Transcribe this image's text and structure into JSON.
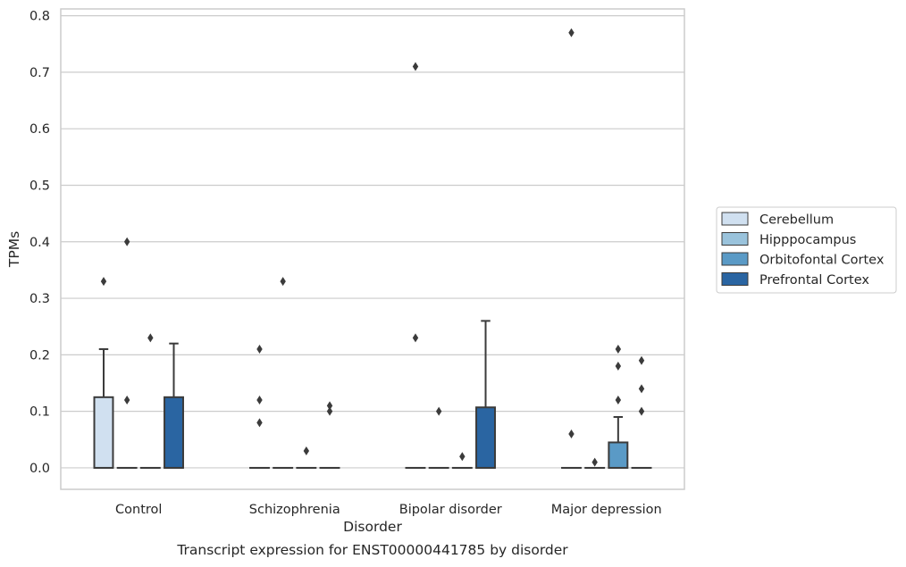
{
  "caption": "Transcript expression for ENST00000441785 by disorder",
  "chart_data": {
    "type": "boxplot",
    "xlabel": "Disorder",
    "ylabel": "TPMs",
    "ylim": [
      -0.038,
      0.812
    ],
    "yticks": [
      "0.0",
      "0.1",
      "0.2",
      "0.3",
      "0.4",
      "0.5",
      "0.6",
      "0.7",
      "0.8"
    ],
    "grid": "horizontal",
    "legend_position": "right",
    "categories": [
      "Control",
      "Schizophrenia",
      "Bipolar disorder",
      "Major depression"
    ],
    "series": [
      {
        "name": "Cerebellum",
        "color": "#d0e0f0",
        "boxes": [
          {
            "q1": 0,
            "median": 0,
            "q3": 0.125,
            "whisker_low": 0,
            "whisker_high": 0.21,
            "outliers": [
              0.33
            ]
          },
          {
            "q1": 0,
            "median": 0,
            "q3": 0,
            "whisker_low": 0,
            "whisker_high": 0,
            "outliers": [
              0.08,
              0.12,
              0.21
            ]
          },
          {
            "q1": 0,
            "median": 0,
            "q3": 0,
            "whisker_low": 0,
            "whisker_high": 0,
            "outliers": [
              0.23,
              0.71
            ]
          },
          {
            "q1": 0,
            "median": 0,
            "q3": 0,
            "whisker_low": 0,
            "whisker_high": 0,
            "outliers": [
              0.06,
              0.77
            ]
          }
        ]
      },
      {
        "name": "Hipppocampus",
        "color": "#9ac3dc",
        "boxes": [
          {
            "q1": 0,
            "median": 0,
            "q3": 0,
            "whisker_low": 0,
            "whisker_high": 0,
            "outliers": [
              0.12,
              0.4
            ]
          },
          {
            "q1": 0,
            "median": 0,
            "q3": 0,
            "whisker_low": 0,
            "whisker_high": 0,
            "outliers": [
              0.33
            ]
          },
          {
            "q1": 0,
            "median": 0,
            "q3": 0,
            "whisker_low": 0,
            "whisker_high": 0,
            "outliers": [
              0.1
            ]
          },
          {
            "q1": 0,
            "median": 0,
            "q3": 0,
            "whisker_low": 0,
            "whisker_high": 0,
            "outliers": [
              0.01
            ]
          }
        ]
      },
      {
        "name": "Orbitofontal Cortex",
        "color": "#5a9ac6",
        "boxes": [
          {
            "q1": 0,
            "median": 0,
            "q3": 0,
            "whisker_low": 0,
            "whisker_high": 0,
            "outliers": [
              0.23
            ]
          },
          {
            "q1": 0,
            "median": 0,
            "q3": 0,
            "whisker_low": 0,
            "whisker_high": 0,
            "outliers": [
              0.03
            ]
          },
          {
            "q1": 0,
            "median": 0,
            "q3": 0,
            "whisker_low": 0,
            "whisker_high": 0,
            "outliers": [
              0.02
            ]
          },
          {
            "q1": 0,
            "median": 0,
            "q3": 0.045,
            "whisker_low": 0,
            "whisker_high": 0.09,
            "outliers": [
              0.12,
              0.18,
              0.21
            ]
          }
        ]
      },
      {
        "name": "Prefrontal Cortex",
        "color": "#2a65a2",
        "boxes": [
          {
            "q1": 0,
            "median": 0,
            "q3": 0.125,
            "whisker_low": 0,
            "whisker_high": 0.22,
            "outliers": []
          },
          {
            "q1": 0,
            "median": 0,
            "q3": 0,
            "whisker_low": 0,
            "whisker_high": 0,
            "outliers": [
              0.1,
              0.11
            ]
          },
          {
            "q1": 0,
            "median": 0,
            "q3": 0.107,
            "whisker_low": 0,
            "whisker_high": 0.26,
            "outliers": []
          },
          {
            "q1": 0,
            "median": 0,
            "q3": 0,
            "whisker_low": 0,
            "whisker_high": 0,
            "outliers": [
              0.1,
              0.14,
              0.19
            ]
          }
        ]
      }
    ]
  }
}
